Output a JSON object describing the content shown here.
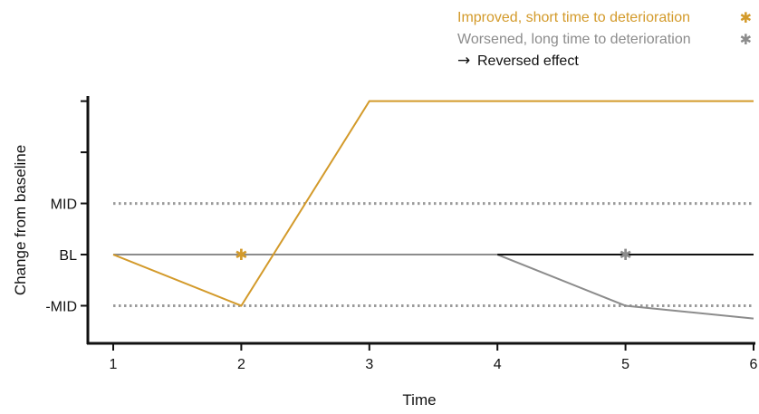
{
  "chart_data": {
    "type": "line",
    "xlabel": "Time",
    "ylabel": "Change from baseline",
    "xlim": [
      1,
      6
    ],
    "ylim": [
      -1.7,
      3.1
    ],
    "x_ticks": [
      1,
      2,
      3,
      4,
      5,
      6
    ],
    "y_tick_labels": [
      {
        "value": 1,
        "label": "MID"
      },
      {
        "value": 0,
        "label": "BL"
      },
      {
        "value": -1,
        "label": "-MID"
      }
    ],
    "y_minor_ticks": [
      3,
      2
    ],
    "reference_lines": [
      {
        "value": 1,
        "style": "dotted"
      },
      {
        "value": -1,
        "style": "dotted"
      }
    ],
    "legend": [
      {
        "label": "Improved, short time to deterioration",
        "marker": "✱",
        "color": "#d39a2a"
      },
      {
        "label": "Worsened, long time to deterioration",
        "marker": "✱",
        "color": "#8c8c8c"
      },
      {
        "label": "Reversed effect",
        "marker": "→",
        "color": "#111111"
      }
    ],
    "series": [
      {
        "color": "#8c8c8c",
        "x": [
          1,
          4,
          5,
          6
        ],
        "y": [
          0,
          0,
          -1,
          -1.25
        ]
      },
      {
        "color": "#111111",
        "x": [
          4,
          6
        ],
        "y": [
          0,
          0
        ]
      },
      {
        "color": "#d39a2a",
        "x": [
          1,
          2,
          3,
          6
        ],
        "y": [
          0,
          -1,
          3,
          3
        ]
      }
    ],
    "markers": [
      {
        "x": 2,
        "y": 0,
        "symbol": "✱",
        "color": "#d39a2a"
      },
      {
        "x": 5,
        "y": 0,
        "symbol": "✱",
        "color": "#8c8c8c"
      }
    ]
  }
}
